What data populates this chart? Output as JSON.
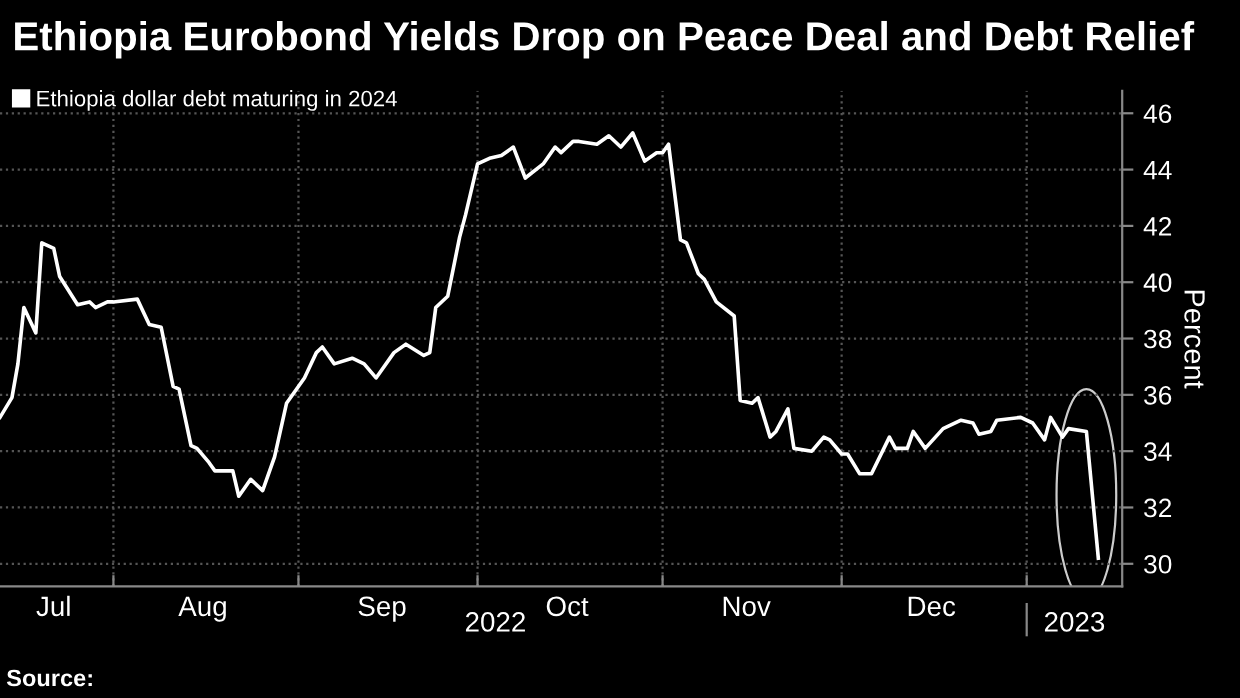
{
  "chart_data": {
    "type": "line",
    "title": "Ethiopia Eurobond Yields Drop on Peace Deal and Debt Relief",
    "ylabel": "Percent",
    "legend": "top left",
    "grid": true,
    "annotations": [
      "Source:"
    ],
    "xlim": [
      "2022-07-13",
      "2023-01-17"
    ],
    "xticks": [
      {
        "value": "2022-07-22",
        "label": "Jul"
      },
      {
        "value": "2022-08-01",
        "label": null
      },
      {
        "value": "2022-08-16",
        "label": "Aug"
      },
      {
        "value": "2022-09-01",
        "label": null
      },
      {
        "value": "2022-09-15",
        "label": "Sep"
      },
      {
        "value": "2022-10-01",
        "label": null
      },
      {
        "value": "2022-10-16",
        "label": "Oct"
      },
      {
        "value": "2022-11-01",
        "label": null
      },
      {
        "value": "2022-11-15",
        "label": "Nov"
      },
      {
        "value": "2022-12-01",
        "label": null
      },
      {
        "value": "2022-12-16",
        "label": "Dec"
      },
      {
        "value": "2023-01-01",
        "label": null
      }
    ],
    "x2lim": [
      "2022-07-13",
      "2023-01-17"
    ],
    "x2ticks": [
      {
        "value": "2022-10-04",
        "label": "2022"
      },
      {
        "value": "2023-01-01",
        "label": null
      },
      {
        "value": "2023-01-09",
        "label": "2023"
      }
    ],
    "ylim": [
      29.2,
      46.8
    ],
    "yticks": [
      30,
      32,
      34,
      36,
      38,
      40,
      42,
      44,
      46
    ],
    "series": [
      {
        "name": "Ethiopia dollar debt maturing in 2024",
        "color": "#ffffff",
        "line_style": "solid",
        "marker": "none",
        "x": [
          "2022-07-13",
          "2022-07-15",
          "2022-07-16",
          "2022-07-17",
          "2022-07-19",
          "2022-07-20",
          "2022-07-22",
          "2022-07-23",
          "2022-07-26",
          "2022-07-28",
          "2022-07-29",
          "2022-07-31",
          "2022-08-01",
          "2022-08-05",
          "2022-08-07",
          "2022-08-09",
          "2022-08-11",
          "2022-08-12",
          "2022-08-14",
          "2022-08-15",
          "2022-08-17",
          "2022-08-18",
          "2022-08-21",
          "2022-08-22",
          "2022-08-24",
          "2022-08-26",
          "2022-08-28",
          "2022-08-30",
          "2022-09-02",
          "2022-09-04",
          "2022-09-05",
          "2022-09-07",
          "2022-09-10",
          "2022-09-12",
          "2022-09-14",
          "2022-09-17",
          "2022-09-19",
          "2022-09-22",
          "2022-09-23",
          "2022-09-24",
          "2022-09-26",
          "2022-09-28",
          "2022-09-29",
          "2022-10-01",
          "2022-10-03",
          "2022-10-05",
          "2022-10-07",
          "2022-10-09",
          "2022-10-12",
          "2022-10-14",
          "2022-10-15",
          "2022-10-17",
          "2022-10-18",
          "2022-10-21",
          "2022-10-23",
          "2022-10-25",
          "2022-10-27",
          "2022-10-29",
          "2022-10-31",
          "2022-11-01",
          "2022-11-02",
          "2022-11-04",
          "2022-11-05",
          "2022-11-07",
          "2022-11-08",
          "2022-11-10",
          "2022-11-13",
          "2022-11-14",
          "2022-11-16",
          "2022-11-17",
          "2022-11-19",
          "2022-11-20",
          "2022-11-22",
          "2022-11-23",
          "2022-11-26",
          "2022-11-28",
          "2022-11-29",
          "2022-12-01",
          "2022-12-02",
          "2022-12-04",
          "2022-12-06",
          "2022-12-09",
          "2022-12-10",
          "2022-12-12",
          "2022-12-13",
          "2022-12-15",
          "2022-12-18",
          "2022-12-21",
          "2022-12-23",
          "2022-12-24",
          "2022-12-26",
          "2022-12-27",
          "2022-12-31",
          "2023-01-02",
          "2023-01-04",
          "2023-01-05",
          "2023-01-07",
          "2023-01-08",
          "2023-01-11",
          "2023-01-13"
        ],
        "values": [
          35.2,
          35.9,
          37.1,
          39.1,
          38.2,
          41.4,
          41.2,
          40.2,
          39.2,
          39.3,
          39.1,
          39.3,
          39.3,
          39.4,
          38.5,
          38.4,
          36.3,
          36.2,
          34.2,
          34.1,
          33.6,
          33.3,
          33.3,
          32.4,
          33.0,
          32.6,
          33.8,
          35.7,
          36.6,
          37.5,
          37.7,
          37.1,
          37.3,
          37.1,
          36.6,
          37.5,
          37.8,
          37.4,
          37.5,
          39.1,
          39.5,
          41.6,
          42.4,
          44.2,
          44.4,
          44.5,
          44.8,
          43.7,
          44.2,
          44.8,
          44.6,
          45.0,
          45.0,
          44.9,
          45.2,
          44.8,
          45.3,
          44.3,
          44.6,
          44.6,
          44.9,
          41.5,
          41.4,
          40.3,
          40.1,
          39.3,
          38.8,
          35.8,
          35.7,
          35.9,
          34.5,
          34.7,
          35.5,
          34.1,
          34.0,
          34.5,
          34.4,
          33.9,
          33.9,
          33.2,
          33.2,
          34.5,
          34.1,
          34.1,
          34.7,
          34.1,
          34.8,
          35.1,
          35.0,
          34.6,
          34.7,
          35.1,
          35.2,
          35.0,
          34.4,
          35.2,
          34.5,
          34.8,
          34.7,
          30.2
        ]
      }
    ]
  }
}
